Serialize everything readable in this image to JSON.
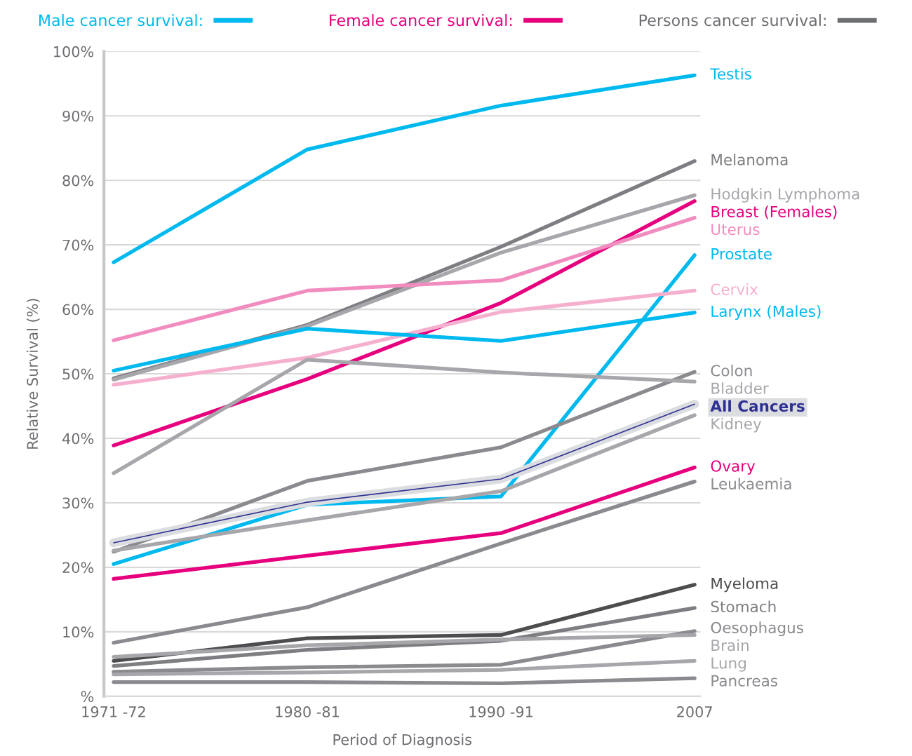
{
  "chart_data": {
    "type": "line",
    "xlabel": "Period of Diagnosis",
    "ylabel": "Relative Survival (%)",
    "categories": [
      "1971 -72",
      "1980 -81",
      "1990 -91",
      "2007"
    ],
    "ylim": [
      0,
      100
    ],
    "yticks": [
      {
        "value": 0,
        "label": "%"
      },
      {
        "value": 10,
        "label": "10%"
      },
      {
        "value": 20,
        "label": "20%"
      },
      {
        "value": 30,
        "label": "30%"
      },
      {
        "value": 40,
        "label": "40%"
      },
      {
        "value": 50,
        "label": "50%"
      },
      {
        "value": 60,
        "label": "60%"
      },
      {
        "value": 70,
        "label": "70%"
      },
      {
        "value": 80,
        "label": "80%"
      },
      {
        "value": 90,
        "label": "90%"
      },
      {
        "value": 100,
        "label": "100%"
      }
    ],
    "grid": "y",
    "legend": "top",
    "marker": "none",
    "line_style": "solid",
    "series": [
      {
        "name": "Male cancer survival:",
        "color": "#00b9ef",
        "values": [
          null,
          null,
          null,
          null
        ]
      },
      {
        "name": "Female cancer survival:",
        "color": "#e6007e",
        "values": [
          null,
          null,
          null,
          null
        ]
      },
      {
        "name": "Persons cancer survival:",
        "color": "#6d6e72",
        "values": [
          null,
          null,
          null,
          null
        ]
      },
      {
        "name": "Testis",
        "color": "#00b9ef",
        "values": [
          67.3,
          84.8,
          91.6,
          96.3
        ]
      },
      {
        "name": "Melanoma",
        "color": "#7d7d82",
        "values": [
          49.3,
          57.6,
          69.7,
          83.0
        ]
      },
      {
        "name": "Hodgkin Lymphoma",
        "color": "#a6a6ab",
        "values": [
          49.1,
          57.4,
          68.8,
          77.7
        ]
      },
      {
        "name": "Breast (Females)",
        "color": "#e6007e",
        "values": [
          38.9,
          49.2,
          61.0,
          76.8
        ]
      },
      {
        "name": "Uterus",
        "color": "#f18cbf",
        "values": [
          55.2,
          62.9,
          64.5,
          74.2
        ]
      },
      {
        "name": "Prostate",
        "color": "#00b9ef",
        "values": [
          20.5,
          29.7,
          31.0,
          68.4
        ]
      },
      {
        "name": "Cervix",
        "color": "#f6b0cf",
        "values": [
          48.3,
          52.5,
          59.6,
          62.9
        ]
      },
      {
        "name": "Larynx (Males)",
        "color": "#00b9ef",
        "values": [
          50.5,
          57.0,
          55.1,
          59.5
        ]
      },
      {
        "name": "Colon",
        "color": "#8a8a8f",
        "values": [
          22.4,
          33.4,
          38.6,
          50.3
        ]
      },
      {
        "name": "Bladder",
        "color": "#a6a6ab",
        "values": [
          34.6,
          52.2,
          50.2,
          48.8
        ]
      },
      {
        "name": "All Cancers",
        "color": "#2e3192",
        "values": [
          23.8,
          30.1,
          33.7,
          45.3
        ]
      },
      {
        "name": "Kidney",
        "color": "#a6a6ab",
        "values": [
          22.6,
          27.3,
          31.8,
          43.6
        ]
      },
      {
        "name": "Ovary",
        "color": "#e6007e",
        "values": [
          18.2,
          21.8,
          25.3,
          35.5
        ]
      },
      {
        "name": "Leukaemia",
        "color": "#8a8a8f",
        "values": [
          8.3,
          13.8,
          23.7,
          33.3
        ]
      },
      {
        "name": "Myeloma",
        "color": "#4d4d50",
        "values": [
          5.5,
          9.0,
          9.5,
          17.3
        ]
      },
      {
        "name": "Stomach",
        "color": "#7d7d82",
        "values": [
          4.7,
          7.2,
          8.6,
          13.7
        ]
      },
      {
        "name": "Oesophagus",
        "color": "#8a8a8f",
        "values": [
          3.8,
          4.5,
          4.9,
          10.1
        ]
      },
      {
        "name": "Brain",
        "color": "#a6a6ab",
        "values": [
          6.1,
          7.9,
          8.8,
          9.5
        ]
      },
      {
        "name": "Lung",
        "color": "#a6a6ab",
        "values": [
          3.4,
          3.7,
          4.1,
          5.5
        ]
      },
      {
        "name": "Pancreas",
        "color": "#8a8a8f",
        "values": [
          2.2,
          2.2,
          2.0,
          2.8
        ]
      }
    ]
  }
}
